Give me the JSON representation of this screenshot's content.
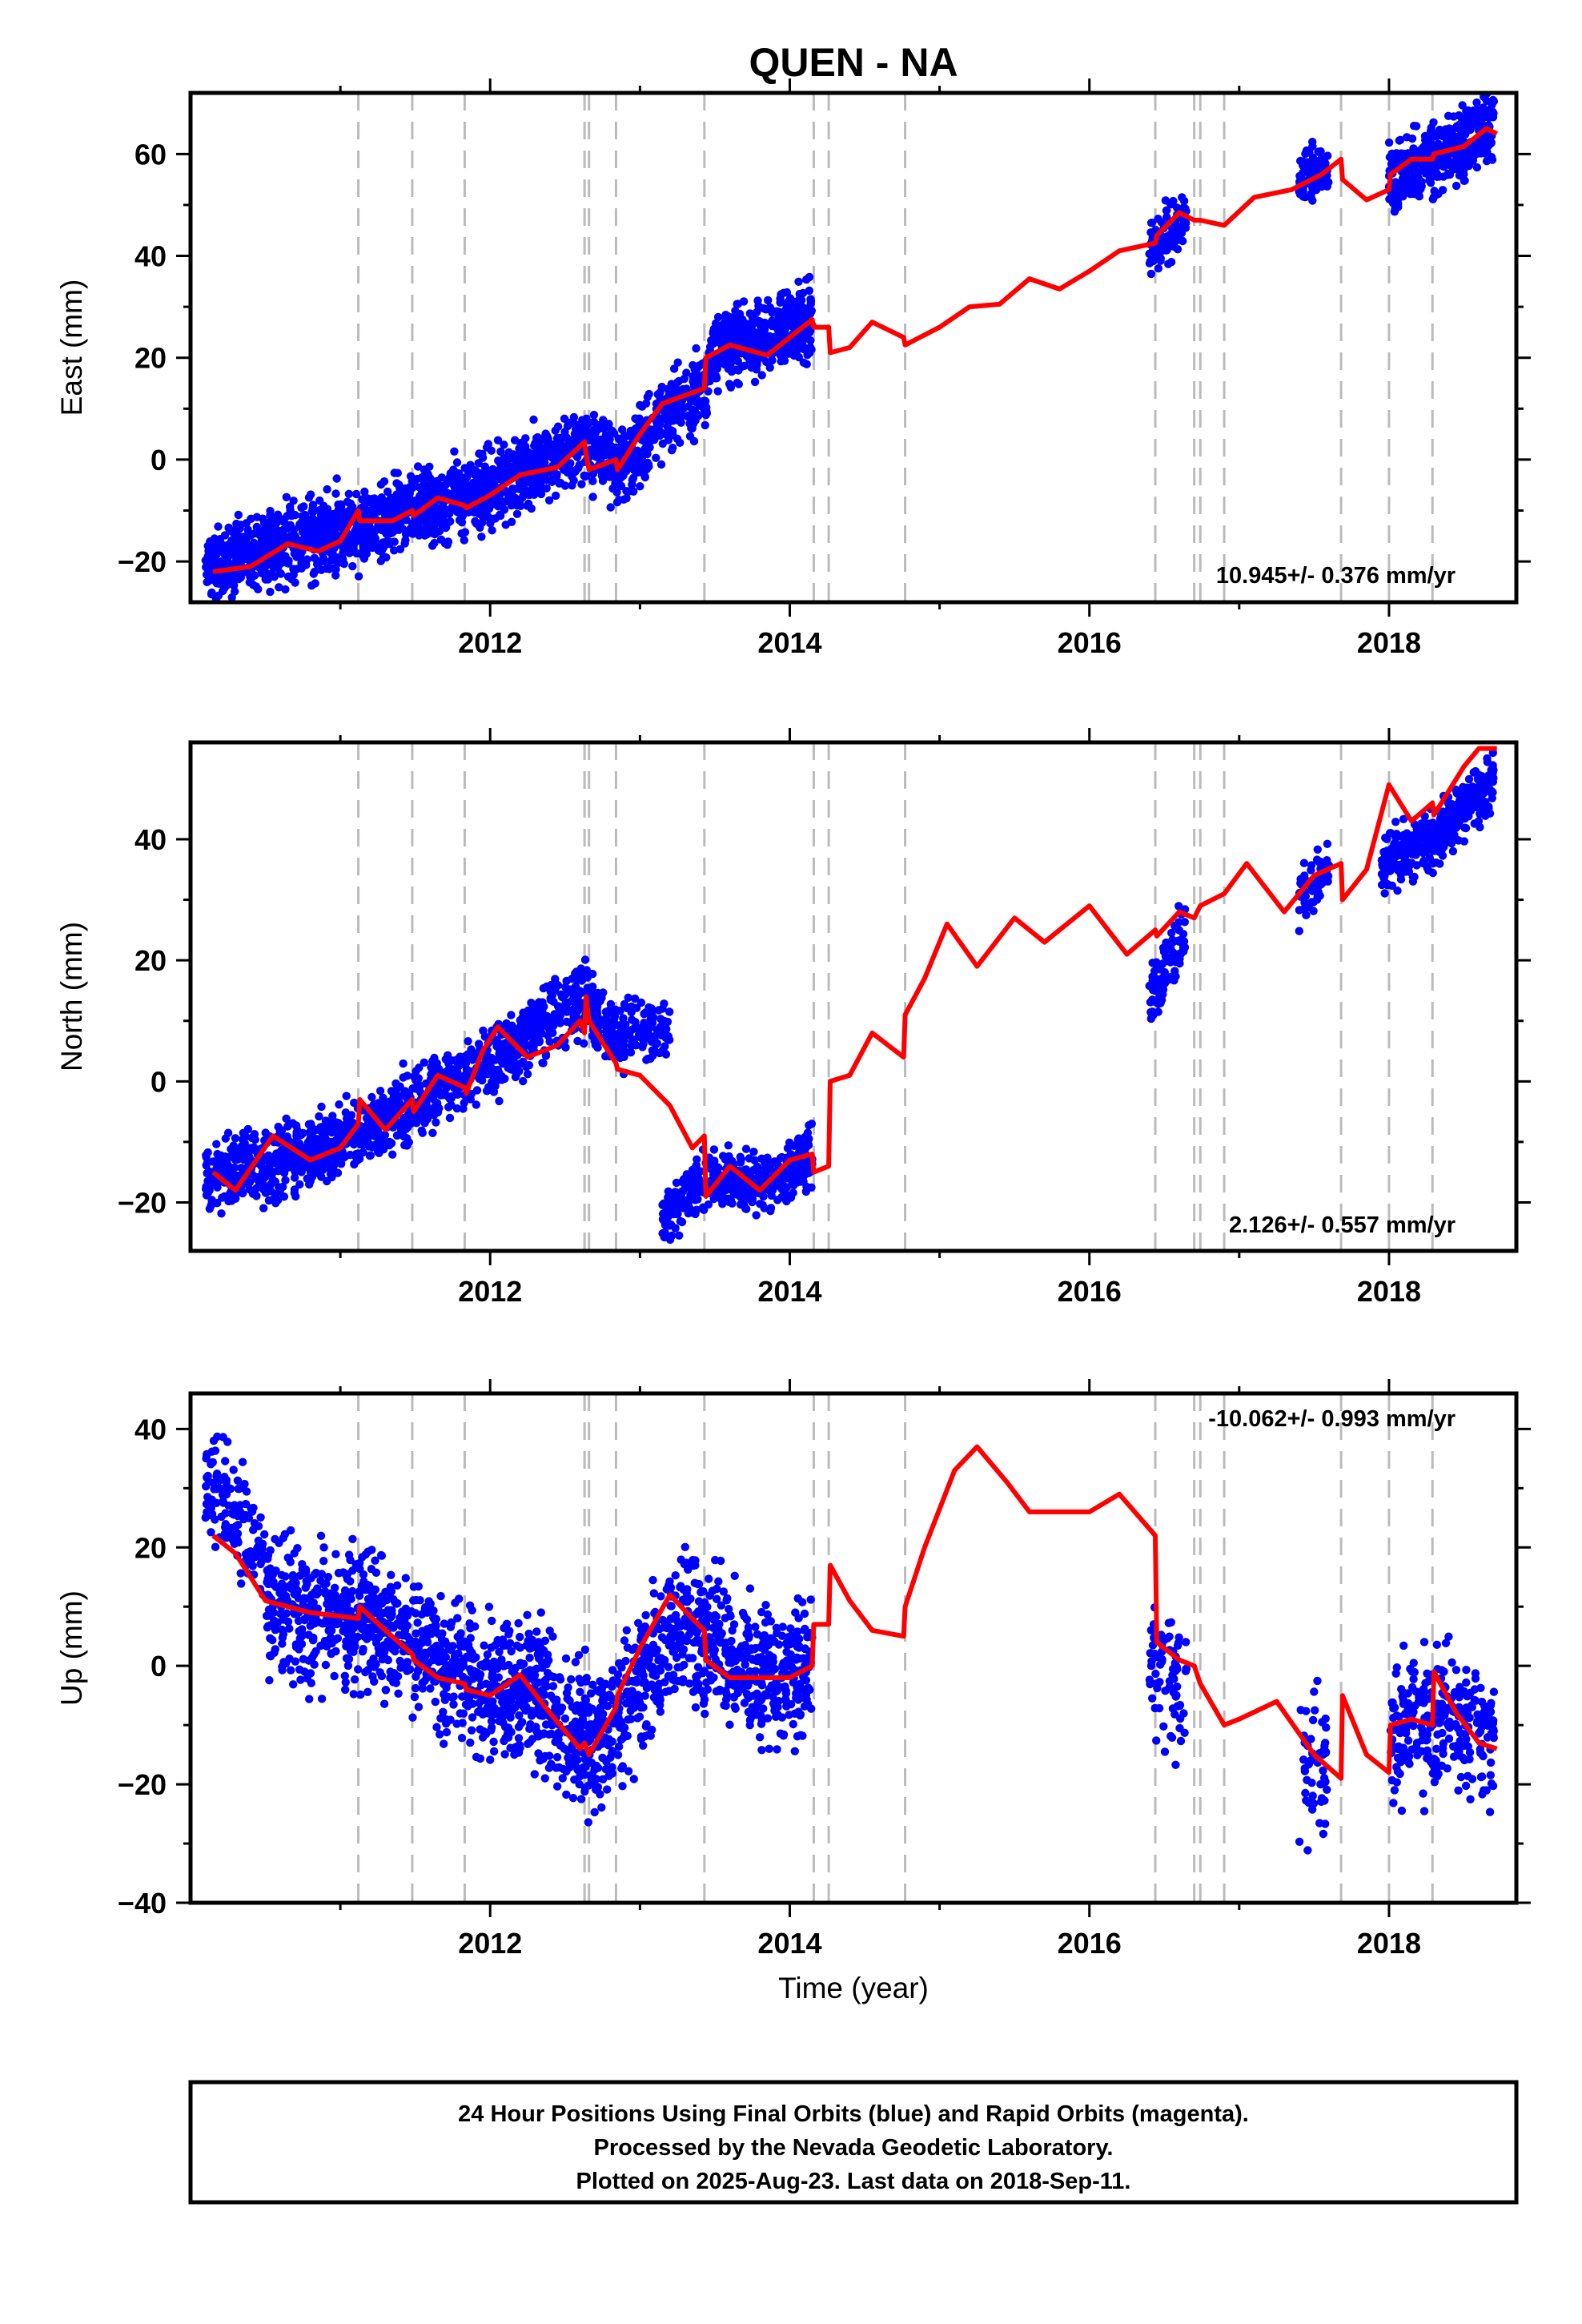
{
  "title": "QUEN - NA",
  "x_axis": {
    "label": "Time (year)",
    "range": [
      2010.0,
      2018.85
    ],
    "major_ticks": [
      2012,
      2014,
      2016,
      2018
    ],
    "minor_ticks": [
      2011,
      2013,
      2015,
      2017
    ]
  },
  "events": [
    2011.12,
    2011.48,
    2011.83,
    2012.63,
    2012.66,
    2012.84,
    2013.43,
    2014.16,
    2014.26,
    2014.77,
    2016.44,
    2016.7,
    2016.74,
    2016.9,
    2017.68,
    2018.0,
    2018.29
  ],
  "colors": {
    "data": "#0000ff",
    "model": "#ff0000",
    "events": "#bbbbbb",
    "frame": "#000000"
  },
  "chart_data": [
    {
      "type": "scatter",
      "panel": "east",
      "ylabel": "East (mm)",
      "ylim": [
        -28,
        72
      ],
      "yticks": [
        -20,
        0,
        20,
        40,
        60
      ],
      "rate_label": "10.945+/- 0.376 mm/yr",
      "model": [
        [
          2010.15,
          -22
        ],
        [
          2010.4,
          -21
        ],
        [
          2010.65,
          -16.5
        ],
        [
          2010.85,
          -18
        ],
        [
          2011.0,
          -16
        ],
        [
          2011.12,
          -10
        ],
        [
          2011.13,
          -12
        ],
        [
          2011.35,
          -12
        ],
        [
          2011.48,
          -10
        ],
        [
          2011.49,
          -11
        ],
        [
          2011.65,
          -7.5
        ],
        [
          2011.83,
          -9
        ],
        [
          2011.84,
          -9.5
        ],
        [
          2012.0,
          -7
        ],
        [
          2012.2,
          -3
        ],
        [
          2012.45,
          -1.5
        ],
        [
          2012.63,
          3.5
        ],
        [
          2012.64,
          1
        ],
        [
          2012.66,
          -2
        ],
        [
          2012.84,
          0
        ],
        [
          2012.85,
          -2
        ],
        [
          2013.0,
          5
        ],
        [
          2013.15,
          11
        ],
        [
          2013.43,
          14
        ],
        [
          2013.44,
          20
        ],
        [
          2013.6,
          22.5
        ],
        [
          2013.85,
          20.5
        ],
        [
          2014.0,
          24
        ],
        [
          2014.15,
          27.5
        ],
        [
          2014.16,
          26
        ],
        [
          2014.26,
          26
        ],
        [
          2014.27,
          21
        ],
        [
          2014.4,
          22
        ],
        [
          2014.55,
          27
        ],
        [
          2014.76,
          24
        ],
        [
          2014.77,
          22.5
        ],
        [
          2015.0,
          26
        ],
        [
          2015.2,
          30
        ],
        [
          2015.4,
          30.5
        ],
        [
          2015.6,
          35.5
        ],
        [
          2015.8,
          33.5
        ],
        [
          2016.0,
          37
        ],
        [
          2016.2,
          41
        ],
        [
          2016.44,
          42.5
        ],
        [
          2016.45,
          44
        ],
        [
          2016.6,
          48.5
        ],
        [
          2016.7,
          47
        ],
        [
          2016.74,
          47
        ],
        [
          2016.9,
          46
        ],
        [
          2017.1,
          51.5
        ],
        [
          2017.35,
          53
        ],
        [
          2017.55,
          56
        ],
        [
          2017.68,
          59
        ],
        [
          2017.69,
          55
        ],
        [
          2017.85,
          51
        ],
        [
          2018.0,
          53
        ],
        [
          2018.01,
          56
        ],
        [
          2018.15,
          59
        ],
        [
          2018.29,
          59
        ],
        [
          2018.3,
          60
        ],
        [
          2018.5,
          61.5
        ],
        [
          2018.65,
          65
        ],
        [
          2018.72,
          64
        ]
      ],
      "data_segments": [
        {
          "range": [
            2010.1,
            2014.15
          ],
          "trend": [
            [
              2010.1,
              -21
            ],
            [
              2011.0,
              -14
            ],
            [
              2012.0,
              -6
            ],
            [
              2012.6,
              3
            ],
            [
              2012.9,
              -1
            ],
            [
              2013.2,
              9
            ],
            [
              2013.43,
              14
            ],
            [
              2013.5,
              22
            ],
            [
              2014.15,
              27
            ]
          ],
          "scatter": 4.5,
          "density": 1.6
        },
        {
          "range": [
            2016.4,
            2016.65
          ],
          "trend": [
            [
              2016.4,
              42
            ],
            [
              2016.65,
              47
            ]
          ],
          "scatter": 3.5,
          "density": 1.0
        },
        {
          "range": [
            2017.4,
            2017.6
          ],
          "trend": [
            [
              2017.4,
              55
            ],
            [
              2017.6,
              57
            ]
          ],
          "scatter": 3.5,
          "density": 1.0
        },
        {
          "range": [
            2018.0,
            2018.7
          ],
          "trend": [
            [
              2018.0,
              55
            ],
            [
              2018.3,
              59
            ],
            [
              2018.7,
              65
            ]
          ],
          "scatter": 4.0,
          "density": 1.6
        }
      ]
    },
    {
      "type": "scatter",
      "panel": "north",
      "ylabel": "North (mm)",
      "ylim": [
        -28,
        56
      ],
      "yticks": [
        -20,
        0,
        20,
        40
      ],
      "rate_label": "2.126+/- 0.557 mm/yr",
      "model": [
        [
          2010.15,
          -15
        ],
        [
          2010.3,
          -18
        ],
        [
          2010.55,
          -9
        ],
        [
          2010.8,
          -13
        ],
        [
          2011.0,
          -11
        ],
        [
          2011.12,
          -7
        ],
        [
          2011.13,
          -3
        ],
        [
          2011.3,
          -8
        ],
        [
          2011.48,
          -3
        ],
        [
          2011.49,
          -5
        ],
        [
          2011.65,
          1
        ],
        [
          2011.83,
          -1
        ],
        [
          2011.84,
          -2
        ],
        [
          2011.95,
          5
        ],
        [
          2012.05,
          9
        ],
        [
          2012.25,
          4
        ],
        [
          2012.45,
          6
        ],
        [
          2012.6,
          10
        ],
        [
          2012.63,
          8
        ],
        [
          2012.64,
          14
        ],
        [
          2012.66,
          10
        ],
        [
          2012.84,
          3
        ],
        [
          2012.85,
          2
        ],
        [
          2013.0,
          1
        ],
        [
          2013.2,
          -4
        ],
        [
          2013.35,
          -11
        ],
        [
          2013.43,
          -9
        ],
        [
          2013.44,
          -19
        ],
        [
          2013.6,
          -14
        ],
        [
          2013.8,
          -18
        ],
        [
          2014.0,
          -13
        ],
        [
          2014.15,
          -12
        ],
        [
          2014.16,
          -15
        ],
        [
          2014.26,
          -14
        ],
        [
          2014.27,
          0
        ],
        [
          2014.4,
          1
        ],
        [
          2014.55,
          8
        ],
        [
          2014.76,
          4
        ],
        [
          2014.77,
          11
        ],
        [
          2014.9,
          17
        ],
        [
          2015.05,
          26
        ],
        [
          2015.25,
          19
        ],
        [
          2015.5,
          27
        ],
        [
          2015.7,
          23
        ],
        [
          2016.0,
          29
        ],
        [
          2016.25,
          21
        ],
        [
          2016.44,
          25
        ],
        [
          2016.45,
          24
        ],
        [
          2016.6,
          28
        ],
        [
          2016.7,
          27
        ],
        [
          2016.74,
          29
        ],
        [
          2016.9,
          31
        ],
        [
          2017.05,
          36
        ],
        [
          2017.3,
          28
        ],
        [
          2017.5,
          34
        ],
        [
          2017.68,
          36
        ],
        [
          2017.69,
          30
        ],
        [
          2017.85,
          35
        ],
        [
          2018.0,
          49
        ],
        [
          2018.15,
          43
        ],
        [
          2018.29,
          46
        ],
        [
          2018.3,
          44
        ],
        [
          2018.5,
          52
        ],
        [
          2018.6,
          55
        ],
        [
          2018.72,
          55
        ]
      ],
      "data_segments": [
        {
          "range": [
            2010.1,
            2012.9
          ],
          "trend": [
            [
              2010.1,
              -16
            ],
            [
              2011.0,
              -10
            ],
            [
              2012.0,
              3
            ],
            [
              2012.6,
              14
            ],
            [
              2012.9,
              6
            ]
          ],
          "scatter": 3.5,
          "density": 1.3
        },
        {
          "range": [
            2012.9,
            2013.2
          ],
          "trend": [
            [
              2012.9,
              9
            ],
            [
              2013.2,
              8
            ]
          ],
          "scatter": 3.0,
          "density": 0.8
        },
        {
          "range": [
            2013.15,
            2014.15
          ],
          "trend": [
            [
              2013.15,
              -22
            ],
            [
              2013.45,
              -16
            ],
            [
              2013.8,
              -17
            ],
            [
              2014.15,
              -13
            ]
          ],
          "scatter": 3.0,
          "density": 1.2
        },
        {
          "range": [
            2016.4,
            2016.65
          ],
          "trend": [
            [
              2016.4,
              13
            ],
            [
              2016.65,
              26
            ]
          ],
          "scatter": 3.0,
          "density": 1.0
        },
        {
          "range": [
            2017.4,
            2017.6
          ],
          "trend": [
            [
              2017.4,
              30
            ],
            [
              2017.6,
              36
            ]
          ],
          "scatter": 3.0,
          "density": 1.0
        },
        {
          "range": [
            2017.95,
            2018.7
          ],
          "trend": [
            [
              2017.95,
              36
            ],
            [
              2018.3,
              40
            ],
            [
              2018.7,
              50
            ]
          ],
          "scatter": 3.0,
          "density": 1.4
        }
      ]
    },
    {
      "type": "scatter",
      "panel": "up",
      "ylabel": "Up (mm)",
      "ylim": [
        -40,
        46
      ],
      "yticks": [
        -40,
        -20,
        0,
        20,
        40
      ],
      "xlabel": "Time (year)",
      "rate_label": "-10.062+/- 0.993 mm/yr",
      "model": [
        [
          2010.15,
          22
        ],
        [
          2010.3,
          19
        ],
        [
          2010.5,
          11
        ],
        [
          2010.8,
          9
        ],
        [
          2011.12,
          8
        ],
        [
          2011.13,
          10
        ],
        [
          2011.3,
          6
        ],
        [
          2011.48,
          2
        ],
        [
          2011.49,
          1
        ],
        [
          2011.65,
          -2
        ],
        [
          2011.83,
          -3
        ],
        [
          2011.84,
          -4
        ],
        [
          2012.0,
          -5
        ],
        [
          2012.2,
          -1.5
        ],
        [
          2012.4,
          -8
        ],
        [
          2012.6,
          -14
        ],
        [
          2012.63,
          -13
        ],
        [
          2012.66,
          -15
        ],
        [
          2012.84,
          -7
        ],
        [
          2012.85,
          -5
        ],
        [
          2013.0,
          3
        ],
        [
          2013.2,
          12
        ],
        [
          2013.35,
          8
        ],
        [
          2013.43,
          6
        ],
        [
          2013.44,
          1
        ],
        [
          2013.6,
          -2
        ],
        [
          2013.85,
          -2
        ],
        [
          2014.0,
          -2
        ],
        [
          2014.15,
          0
        ],
        [
          2014.16,
          7
        ],
        [
          2014.26,
          7
        ],
        [
          2014.27,
          17
        ],
        [
          2014.4,
          11
        ],
        [
          2014.55,
          6
        ],
        [
          2014.76,
          5
        ],
        [
          2014.77,
          10
        ],
        [
          2014.9,
          20
        ],
        [
          2015.1,
          33
        ],
        [
          2015.25,
          37
        ],
        [
          2015.45,
          31
        ],
        [
          2015.6,
          26
        ],
        [
          2015.85,
          26
        ],
        [
          2016.0,
          26
        ],
        [
          2016.2,
          29
        ],
        [
          2016.44,
          22
        ],
        [
          2016.45,
          4
        ],
        [
          2016.6,
          1
        ],
        [
          2016.7,
          0
        ],
        [
          2016.74,
          -3
        ],
        [
          2016.9,
          -10
        ],
        [
          2017.0,
          -9
        ],
        [
          2017.25,
          -6
        ],
        [
          2017.5,
          -15
        ],
        [
          2017.68,
          -19
        ],
        [
          2017.69,
          -5
        ],
        [
          2017.85,
          -15
        ],
        [
          2018.0,
          -18
        ],
        [
          2018.01,
          -10
        ],
        [
          2018.15,
          -9
        ],
        [
          2018.29,
          -10
        ],
        [
          2018.3,
          -1
        ],
        [
          2018.45,
          -8
        ],
        [
          2018.6,
          -13
        ],
        [
          2018.72,
          -14
        ]
      ],
      "data_segments": [
        {
          "range": [
            2010.1,
            2010.5
          ],
          "trend": [
            [
              2010.1,
              32
            ],
            [
              2010.5,
              18
            ]
          ],
          "scatter": 6.0,
          "density": 0.9
        },
        {
          "range": [
            2010.5,
            2014.15
          ],
          "trend": [
            [
              2010.5,
              10
            ],
            [
              2011.2,
              8
            ],
            [
              2011.8,
              -2
            ],
            [
              2012.3,
              -5
            ],
            [
              2012.7,
              -13
            ],
            [
              2013.3,
              8
            ],
            [
              2013.8,
              -2
            ],
            [
              2014.15,
              -2
            ]
          ],
          "scatter": 7.0,
          "density": 1.4
        },
        {
          "range": [
            2016.4,
            2016.65
          ],
          "trend": [
            [
              2016.4,
              2
            ],
            [
              2016.65,
              -6
            ]
          ],
          "scatter": 7.0,
          "density": 0.8
        },
        {
          "range": [
            2017.4,
            2017.6
          ],
          "trend": [
            [
              2017.4,
              -17
            ],
            [
              2017.6,
              -18
            ]
          ],
          "scatter": 7.0,
          "density": 0.7
        },
        {
          "range": [
            2018.0,
            2018.7
          ],
          "trend": [
            [
              2018.0,
              -12
            ],
            [
              2018.3,
              -8
            ],
            [
              2018.7,
              -12
            ]
          ],
          "scatter": 7.0,
          "density": 1.1
        }
      ]
    }
  ],
  "footer": {
    "line1": "24 Hour Positions Using Final Orbits (blue) and Rapid Orbits (magenta).",
    "line2": "Processed by the Nevada Geodetic Laboratory.",
    "line3": "Plotted on 2025-Aug-23. Last data on 2018-Sep-11."
  }
}
